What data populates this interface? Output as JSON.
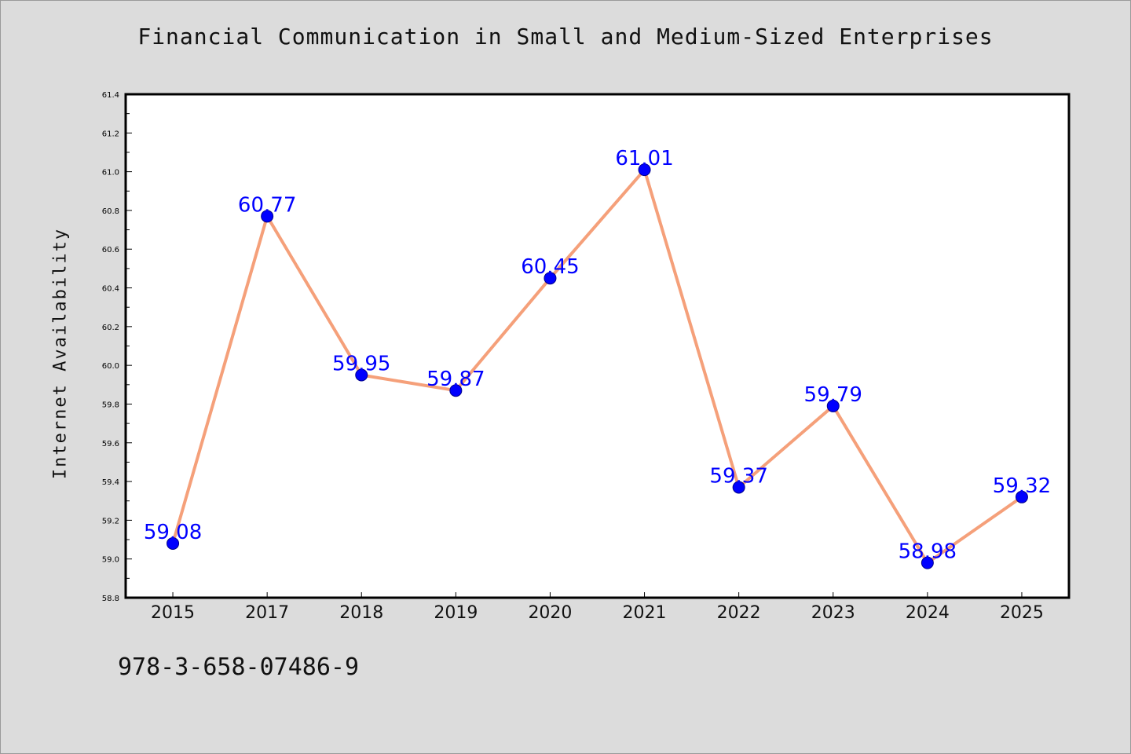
{
  "chart_data": {
    "type": "line",
    "title": "Financial Communication in Small and Medium-Sized Enterprises",
    "xlabel": "",
    "ylabel": "Internet Availability",
    "categories": [
      "2015",
      "2017",
      "2018",
      "2019",
      "2020",
      "2021",
      "2022",
      "2023",
      "2024",
      "2025"
    ],
    "series": [
      {
        "values": [
          59.08,
          60.77,
          59.95,
          59.87,
          60.45,
          61.01,
          59.37,
          59.79,
          58.98,
          59.32
        ]
      }
    ],
    "data_labels": [
      "59.08",
      "60.77",
      "59.95",
      "59.87",
      "60.45",
      "61.01",
      "59.37",
      "59.79",
      "58.98",
      "59.32"
    ],
    "ylim": [
      58.8,
      61.4
    ],
    "yticks": [
      "58.8",
      "59.0",
      "59.2",
      "59.4",
      "59.6",
      "59.8",
      "60.0",
      "60.2",
      "60.4",
      "60.6",
      "60.8",
      "61.0",
      "61.2",
      "61.4"
    ],
    "grid": false,
    "colors": {
      "line": "#f5a07a",
      "marker": "#0000ff",
      "label": "#0000ff",
      "plot_bg": "#ffffff",
      "page_bg": "#dcdcdc"
    }
  },
  "footer": {
    "code": "978-3-658-07486-9"
  }
}
